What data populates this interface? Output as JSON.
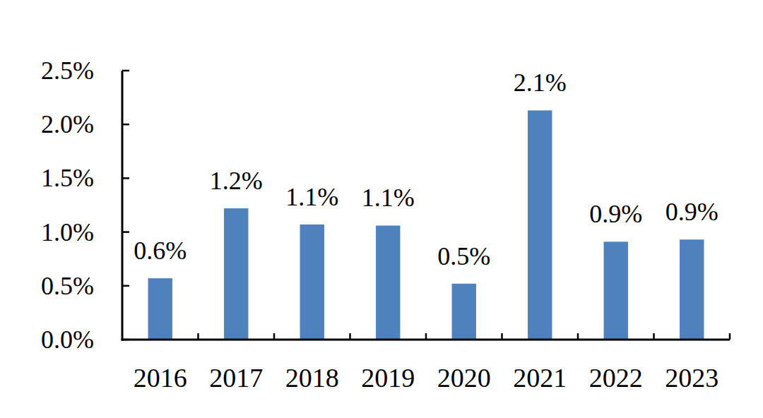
{
  "chart_data": {
    "type": "bar",
    "categories": [
      "2016",
      "2017",
      "2018",
      "2019",
      "2020",
      "2021",
      "2022",
      "2023"
    ],
    "values": [
      0.57,
      1.22,
      1.07,
      1.06,
      0.52,
      2.13,
      0.91,
      0.93
    ],
    "value_labels": [
      "0.6%",
      "1.2%",
      "1.1%",
      "1.1%",
      "0.5%",
      "2.1%",
      "0.9%",
      "0.9%"
    ],
    "color": "#4f81bd",
    "ylim": [
      0,
      2.5
    ],
    "yticks": [
      {
        "value": 0,
        "label": "0.0%"
      },
      {
        "value": 0.5,
        "label": "0.5%"
      },
      {
        "value": 1,
        "label": "1.0%"
      },
      {
        "value": 1.5,
        "label": "1.5%"
      },
      {
        "value": 2,
        "label": "2.0%"
      },
      {
        "value": 2.5,
        "label": "2.5%"
      }
    ],
    "grid": false,
    "data_labels": true
  }
}
